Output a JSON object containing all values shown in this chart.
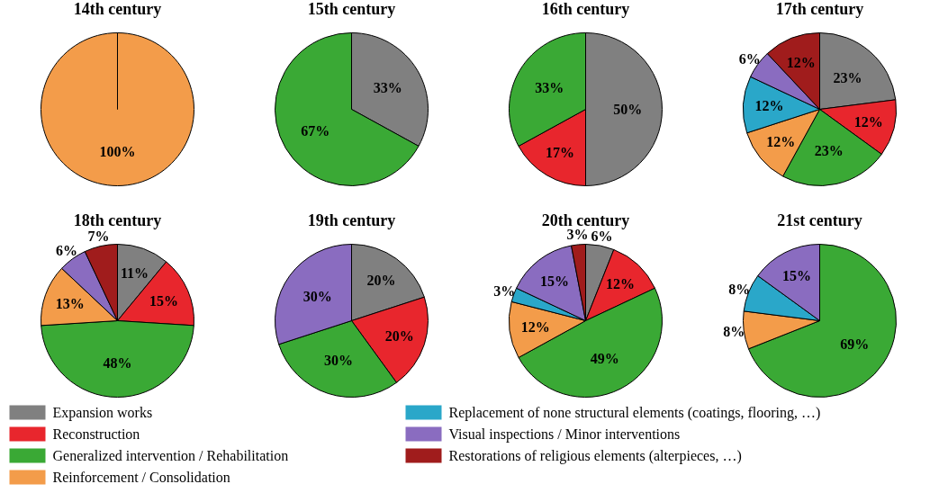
{
  "chart_data": [
    {
      "type": "pie",
      "title": "14th century",
      "categories": [
        null
      ],
      "values": [
        100
      ],
      "value_labels": [
        "100%"
      ],
      "colors": [
        "#f39c4a"
      ]
    },
    {
      "type": "pie",
      "title": "15th century",
      "categories": [
        null,
        null
      ],
      "values": [
        33,
        67
      ],
      "value_labels": [
        "33%",
        "67%"
      ],
      "colors": [
        "#808080",
        "#3aa935"
      ]
    },
    {
      "type": "pie",
      "title": "16th century",
      "categories": [
        null,
        null,
        null
      ],
      "values": [
        50,
        17,
        33
      ],
      "value_labels": [
        "50%",
        "17%",
        "33%"
      ],
      "colors": [
        "#808080",
        "#e8262d",
        "#3aa935"
      ]
    },
    {
      "type": "pie",
      "title": "17th century",
      "legend": "bottom",
      "categories": [
        "Expansion works",
        "Reconstruction",
        "Generalized intervention / Rehabilitation",
        "Reinforcement / Consolidation",
        "Replacement of none structural elements (coatings, flooring, …)",
        "Visual inspections / Minor interventions",
        "Restorations of religious elements (alterpieces, …)"
      ],
      "values": [
        23,
        12,
        23,
        12,
        12,
        6,
        12
      ],
      "value_labels": [
        "23%",
        "12%",
        "23%",
        "12%",
        "12%",
        "6%",
        "12%"
      ],
      "colors": [
        "#808080",
        "#e8262d",
        "#3aa935",
        "#f39c4a",
        "#2aa7c9",
        "#8a6cc0",
        "#a01c1c"
      ]
    },
    {
      "type": "pie",
      "title": "18th century",
      "categories": [
        null,
        null,
        null,
        null,
        null,
        null
      ],
      "values": [
        11,
        15,
        48,
        13,
        6,
        7
      ],
      "value_labels": [
        "11%",
        "15%",
        "48%",
        "13%",
        "6%",
        "7%"
      ],
      "colors": [
        "#808080",
        "#e8262d",
        "#3aa935",
        "#f39c4a",
        "#8a6cc0",
        "#a01c1c"
      ]
    },
    {
      "type": "pie",
      "title": "19th century",
      "categories": [
        null,
        null,
        null,
        null
      ],
      "values": [
        20,
        20,
        30,
        30
      ],
      "value_labels": [
        "20%",
        "20%",
        "30%",
        "30%"
      ],
      "colors": [
        "#808080",
        "#e8262d",
        "#3aa935",
        "#8a6cc0"
      ]
    },
    {
      "type": "pie",
      "title": "20th century",
      "categories": [
        null,
        null,
        null,
        null,
        null,
        null,
        null
      ],
      "values": [
        6,
        12,
        49,
        12,
        3,
        15,
        3
      ],
      "value_labels": [
        "6%",
        "12%",
        "49%",
        "12%",
        "3%",
        "15%",
        "3%"
      ],
      "colors": [
        "#808080",
        "#e8262d",
        "#3aa935",
        "#f39c4a",
        "#2aa7c9",
        "#8a6cc0",
        "#a01c1c"
      ]
    },
    {
      "type": "pie",
      "title": "21st century",
      "categories": [
        null,
        null,
        null,
        null
      ],
      "values": [
        69,
        8,
        8,
        15
      ],
      "value_labels": [
        "69%",
        "8%",
        "8%",
        "15%"
      ],
      "colors": [
        "#3aa935",
        "#f39c4a",
        "#2aa7c9",
        "#8a6cc0"
      ]
    }
  ]
}
